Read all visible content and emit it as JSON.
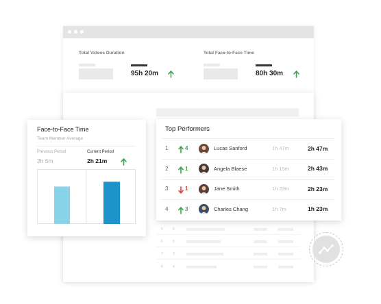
{
  "metrics": [
    {
      "label": "Total Videos Duration",
      "value": "95h 20m",
      "trend_icon": "arrow-up-icon"
    },
    {
      "label": "Total Face-to-Face Time",
      "value": "80h 30m",
      "trend_icon": "arrow-up-icon"
    }
  ],
  "face_to_face": {
    "title": "Face-to-Face Time",
    "subtitle": "Team Member Average",
    "previous_label": "Previous Period",
    "previous_value": "2h 5m",
    "current_label": "Current Period",
    "current_value": "2h  21m",
    "trend_icon": "arrow-up-icon",
    "colors": {
      "previous": "#89d3e8",
      "current": "#1d93c9"
    }
  },
  "chart_data": {
    "type": "bar",
    "categories": [
      "Previous Period",
      "Current Period"
    ],
    "values": [
      125,
      141
    ],
    "ylim": [
      0,
      165
    ],
    "grid": false
  },
  "top_performers": {
    "title": "Top Performers",
    "rows": [
      {
        "rank": "1",
        "change": "4",
        "direction": "up",
        "name": "Lucas Sanford",
        "prev": "1h 47m",
        "curr": "2h 47m",
        "avatar_color": "#6b4a3a"
      },
      {
        "rank": "2",
        "change": "1",
        "direction": "up",
        "name": "Angela Blaese",
        "prev": "1h 15m",
        "curr": "2h 43m",
        "avatar_color": "#4a3b3b"
      },
      {
        "rank": "3",
        "change": "1",
        "direction": "down",
        "name": "Jane Smith",
        "prev": "1h 23m",
        "curr": "2h 23m",
        "avatar_color": "#5b3f35"
      },
      {
        "rank": "4",
        "change": "3",
        "direction": "up",
        "name": "Charles Chang",
        "prev": "1h 7m",
        "curr": "1h  23m",
        "avatar_color": "#3c4f66"
      }
    ]
  },
  "trend_button": {
    "icon": "trend-line-icon"
  }
}
